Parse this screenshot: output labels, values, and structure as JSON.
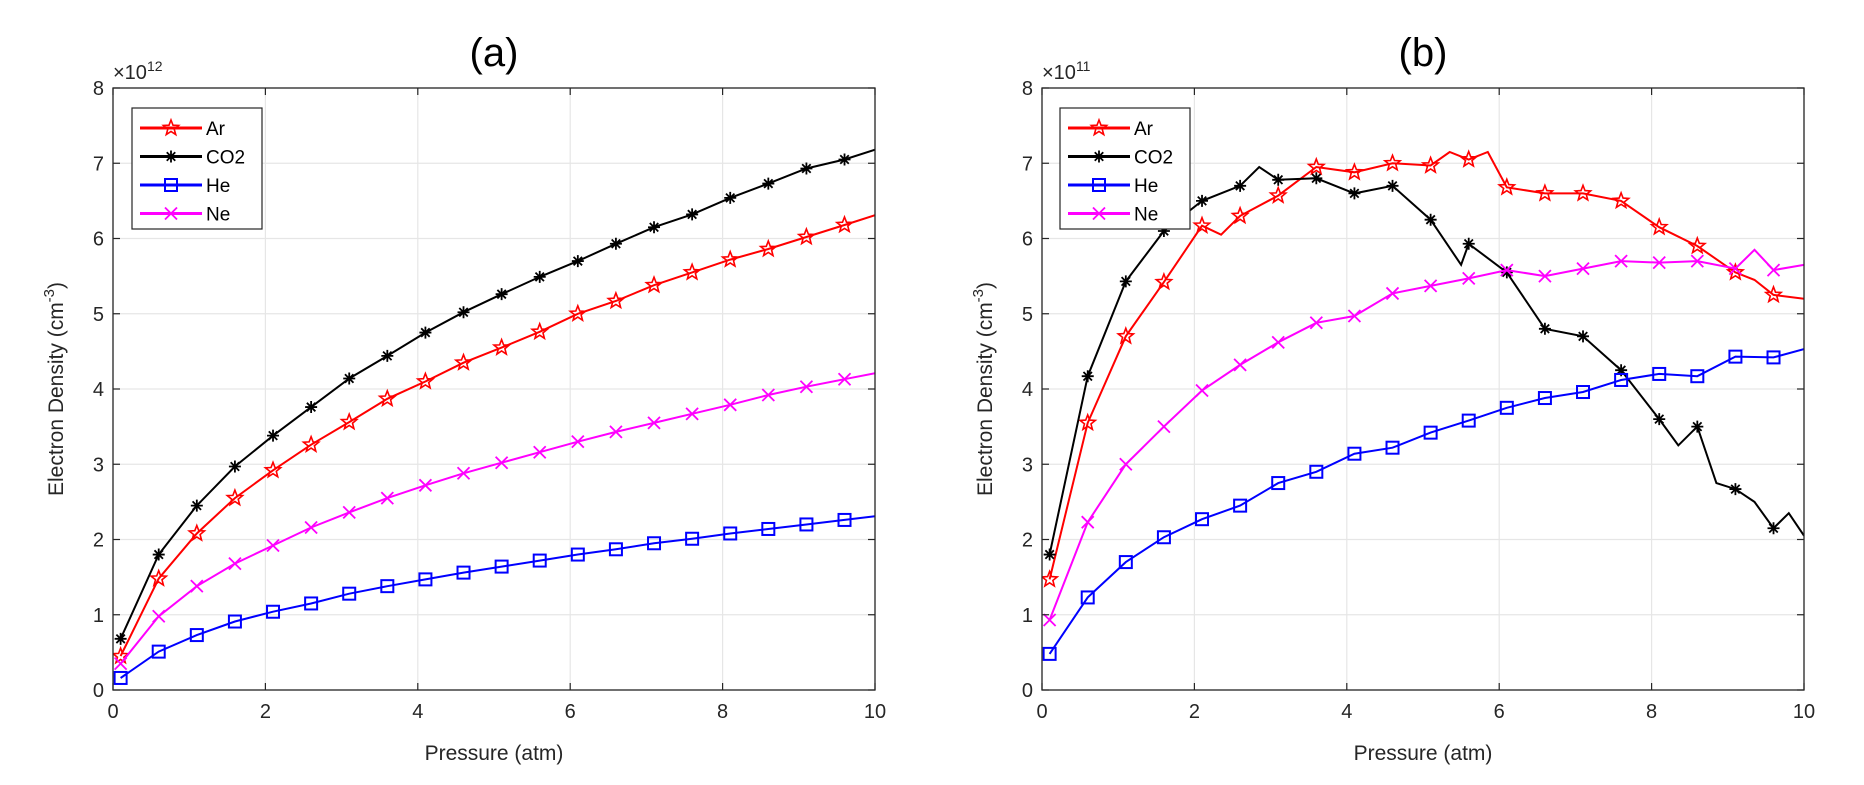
{
  "chart_data": [
    {
      "type": "line",
      "title": "(a)",
      "xlabel": "Pressure (atm)",
      "ylabel": "Electron Density (cm",
      "ylabel_sup": "-3",
      "ylabel_close": ")",
      "y_multiplier_base": "×10",
      "y_multiplier_exp": "12",
      "xlim": [
        0,
        10
      ],
      "ylim": [
        0,
        8
      ],
      "xticks": [
        "0",
        "2",
        "4",
        "6",
        "8",
        "10"
      ],
      "yticks": [
        "0",
        "1",
        "2",
        "3",
        "4",
        "5",
        "6",
        "7",
        "8"
      ],
      "grid": true,
      "legend_position": "top-left",
      "series": [
        {
          "name": "Ar",
          "color": "#ff0000",
          "marker": "star",
          "x": [
            0.1,
            0.6,
            1.1,
            1.6,
            2.1,
            2.6,
            3.1,
            3.6,
            4.1,
            4.6,
            5.1,
            5.6,
            6.1,
            6.6,
            7.1,
            7.6,
            8.1,
            8.6,
            9.1,
            9.6,
            10
          ],
          "y": [
            0.45,
            1.48,
            2.08,
            2.55,
            2.92,
            3.26,
            3.56,
            3.87,
            4.1,
            4.35,
            4.55,
            4.76,
            5.0,
            5.17,
            5.38,
            5.55,
            5.72,
            5.86,
            6.02,
            6.18,
            6.31
          ]
        },
        {
          "name": "CO2",
          "color": "#000000",
          "marker": "asterisk",
          "x": [
            0.1,
            0.6,
            1.1,
            1.6,
            2.1,
            2.6,
            3.1,
            3.6,
            4.1,
            4.6,
            5.1,
            5.6,
            6.1,
            6.6,
            7.1,
            7.6,
            8.1,
            8.6,
            9.1,
            9.6,
            10
          ],
          "y": [
            0.68,
            1.8,
            2.45,
            2.97,
            3.38,
            3.76,
            4.14,
            4.44,
            4.75,
            5.02,
            5.26,
            5.49,
            5.7,
            5.93,
            6.15,
            6.32,
            6.54,
            6.73,
            6.93,
            7.05,
            7.18
          ]
        },
        {
          "name": "He",
          "color": "#0000ff",
          "marker": "square",
          "x": [
            0.1,
            0.6,
            1.1,
            1.6,
            2.1,
            2.6,
            3.1,
            3.6,
            4.1,
            4.6,
            5.1,
            5.6,
            6.1,
            6.6,
            7.1,
            7.6,
            8.1,
            8.6,
            9.1,
            9.6,
            10
          ],
          "y": [
            0.16,
            0.51,
            0.73,
            0.91,
            1.04,
            1.15,
            1.28,
            1.38,
            1.47,
            1.56,
            1.64,
            1.72,
            1.8,
            1.87,
            1.95,
            2.01,
            2.08,
            2.14,
            2.2,
            2.26,
            2.31
          ]
        },
        {
          "name": "Ne",
          "color": "#ff00ff",
          "marker": "x",
          "x": [
            0.1,
            0.6,
            1.1,
            1.6,
            2.1,
            2.6,
            3.1,
            3.6,
            4.1,
            4.6,
            5.1,
            5.6,
            6.1,
            6.6,
            7.1,
            7.6,
            8.1,
            8.6,
            9.1,
            9.6,
            10
          ],
          "y": [
            0.35,
            0.98,
            1.38,
            1.68,
            1.92,
            2.16,
            2.36,
            2.55,
            2.72,
            2.88,
            3.02,
            3.16,
            3.3,
            3.43,
            3.55,
            3.67,
            3.79,
            3.92,
            4.03,
            4.13,
            4.21
          ]
        }
      ]
    },
    {
      "type": "line",
      "title": "(b)",
      "xlabel": "Pressure (atm)",
      "ylabel": "Electron Density (cm",
      "ylabel_sup": "-3",
      "ylabel_close": ")",
      "y_multiplier_base": "×10",
      "y_multiplier_exp": "11",
      "xlim": [
        0,
        10
      ],
      "ylim": [
        0,
        8
      ],
      "xticks": [
        "0",
        "2",
        "4",
        "6",
        "8",
        "10"
      ],
      "yticks": [
        "0",
        "1",
        "2",
        "3",
        "4",
        "5",
        "6",
        "7",
        "8"
      ],
      "grid": true,
      "legend_position": "top-left",
      "series": [
        {
          "name": "Ar",
          "color": "#ff0000",
          "marker": "star",
          "x": [
            0.1,
            0.6,
            1.1,
            1.6,
            2.1,
            2.35,
            2.6,
            3.1,
            3.6,
            4.1,
            4.6,
            5.1,
            5.35,
            5.6,
            5.85,
            6.1,
            6.6,
            7.1,
            7.6,
            8.1,
            8.6,
            9.1,
            9.35,
            9.6,
            10
          ],
          "y": [
            1.47,
            3.55,
            4.7,
            5.42,
            6.17,
            6.05,
            6.3,
            6.57,
            6.95,
            6.88,
            7.0,
            6.97,
            7.15,
            7.05,
            7.15,
            6.68,
            6.6,
            6.6,
            6.5,
            6.15,
            5.9,
            5.55,
            5.45,
            5.25,
            5.2
          ]
        },
        {
          "name": "CO2",
          "color": "#000000",
          "marker": "asterisk",
          "x": [
            0.1,
            0.6,
            1.1,
            1.6,
            2.1,
            2.6,
            2.85,
            3.1,
            3.6,
            4.1,
            4.6,
            5.1,
            5.5,
            5.6,
            6.1,
            6.6,
            7.1,
            7.6,
            8.1,
            8.35,
            8.6,
            8.85,
            9.1,
            9.35,
            9.6,
            9.8,
            10
          ],
          "y": [
            1.8,
            4.17,
            5.43,
            6.1,
            6.5,
            6.7,
            6.95,
            6.78,
            6.8,
            6.6,
            6.7,
            6.25,
            5.65,
            5.93,
            5.55,
            4.8,
            4.7,
            4.25,
            3.6,
            3.25,
            3.5,
            2.75,
            2.67,
            2.5,
            2.15,
            2.35,
            2.05
          ]
        },
        {
          "name": "He",
          "color": "#0000ff",
          "marker": "square",
          "x": [
            0.1,
            0.6,
            1.1,
            1.6,
            2.1,
            2.6,
            3.1,
            3.6,
            4.1,
            4.6,
            5.1,
            5.6,
            6.1,
            6.6,
            7.1,
            7.6,
            8.1,
            8.6,
            9.1,
            9.6,
            10
          ],
          "y": [
            0.48,
            1.23,
            1.7,
            2.03,
            2.27,
            2.45,
            2.75,
            2.9,
            3.14,
            3.22,
            3.42,
            3.58,
            3.75,
            3.88,
            3.96,
            4.12,
            4.2,
            4.17,
            4.43,
            4.42,
            4.53
          ]
        },
        {
          "name": "Ne",
          "color": "#ff00ff",
          "marker": "x",
          "x": [
            0.1,
            0.6,
            1.1,
            1.6,
            2.1,
            2.6,
            3.1,
            3.6,
            4.1,
            4.6,
            5.1,
            5.6,
            6.1,
            6.6,
            7.1,
            7.6,
            8.1,
            8.6,
            9.1,
            9.35,
            9.6,
            10
          ],
          "y": [
            0.93,
            2.23,
            3.0,
            3.5,
            3.98,
            4.32,
            4.62,
            4.88,
            4.97,
            5.27,
            5.37,
            5.47,
            5.58,
            5.5,
            5.6,
            5.7,
            5.68,
            5.7,
            5.6,
            5.85,
            5.58,
            5.65
          ]
        }
      ]
    }
  ]
}
